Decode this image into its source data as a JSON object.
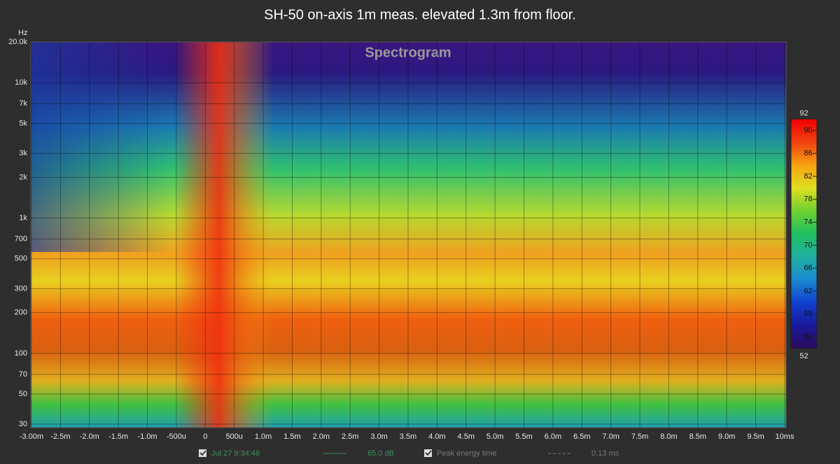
{
  "chart_data": {
    "type": "spectrogram",
    "title": "SH-50 on-axis 1m meas. elevated 1.3m from floor.",
    "subtitle": "Spectrogram",
    "y_label": "Hz",
    "log_y": true,
    "grid": true,
    "xlim": [
      -3,
      10
    ],
    "xticks": [
      {
        "value": -3,
        "label": "-3.00m"
      },
      {
        "value": -2.5,
        "label": "-2.5m"
      },
      {
        "value": -2,
        "label": "-2.0m"
      },
      {
        "value": -1.5,
        "label": "-1.5m"
      },
      {
        "value": -1,
        "label": "-1.0m"
      },
      {
        "value": -0.5,
        "label": "-500u"
      },
      0,
      {
        "value": 0.5,
        "label": "500u"
      },
      {
        "value": 1,
        "label": "1.0m"
      },
      {
        "value": 1.5,
        "label": "1.5m"
      },
      {
        "value": 2,
        "label": "2.0m"
      },
      {
        "value": 2.5,
        "label": "2.5m"
      },
      {
        "value": 3,
        "label": "3.0m"
      },
      {
        "value": 3.5,
        "label": "3.5m"
      },
      {
        "value": 4,
        "label": "4.0m"
      },
      {
        "value": 4.5,
        "label": "4.5m"
      },
      {
        "value": 5,
        "label": "5.0m"
      },
      {
        "value": 5.5,
        "label": "5.5m"
      },
      {
        "value": 6,
        "label": "6.0m"
      },
      {
        "value": 6.5,
        "label": "6.5m"
      },
      {
        "value": 7,
        "label": "7.0m"
      },
      {
        "value": 7.5,
        "label": "7.5m"
      },
      {
        "value": 8,
        "label": "8.0m"
      },
      {
        "value": 8.5,
        "label": "8.5m"
      },
      {
        "value": 9,
        "label": "9.0m"
      },
      {
        "value": 9.5,
        "label": "9.5m"
      },
      {
        "value": 10,
        "label": "10ms"
      }
    ],
    "ylim": [
      30,
      20000
    ],
    "yticks": [
      {
        "value": 20000,
        "label": "20.0k"
      },
      {
        "value": 10000,
        "label": "10k"
      },
      {
        "value": 7000,
        "label": "7k"
      },
      {
        "value": 5000,
        "label": "5k"
      },
      {
        "value": 3000,
        "label": "3k"
      },
      {
        "value": 2000,
        "label": "2k"
      },
      {
        "value": 1000,
        "label": "1k"
      },
      700,
      500,
      300,
      200,
      100,
      70,
      50,
      30
    ],
    "colorbar": {
      "zlim": [
        52,
        92
      ],
      "zticks": [
        54,
        58,
        62,
        66,
        70,
        74,
        78,
        82,
        86,
        90
      ],
      "colormap": [
        "#2a0a5a",
        "#1a1a9a",
        "#1040d0",
        "#1a8ad0",
        "#20b0a0",
        "#20c060",
        "#70d030",
        "#e0e020",
        "#f8a010",
        "#f04010",
        "#f00000"
      ]
    }
  },
  "footer": {
    "date": "Jul 27 9:34:48",
    "level": "65.0 dB",
    "marker_label": "Peak energy time",
    "marker_value": "0.13 ms"
  }
}
